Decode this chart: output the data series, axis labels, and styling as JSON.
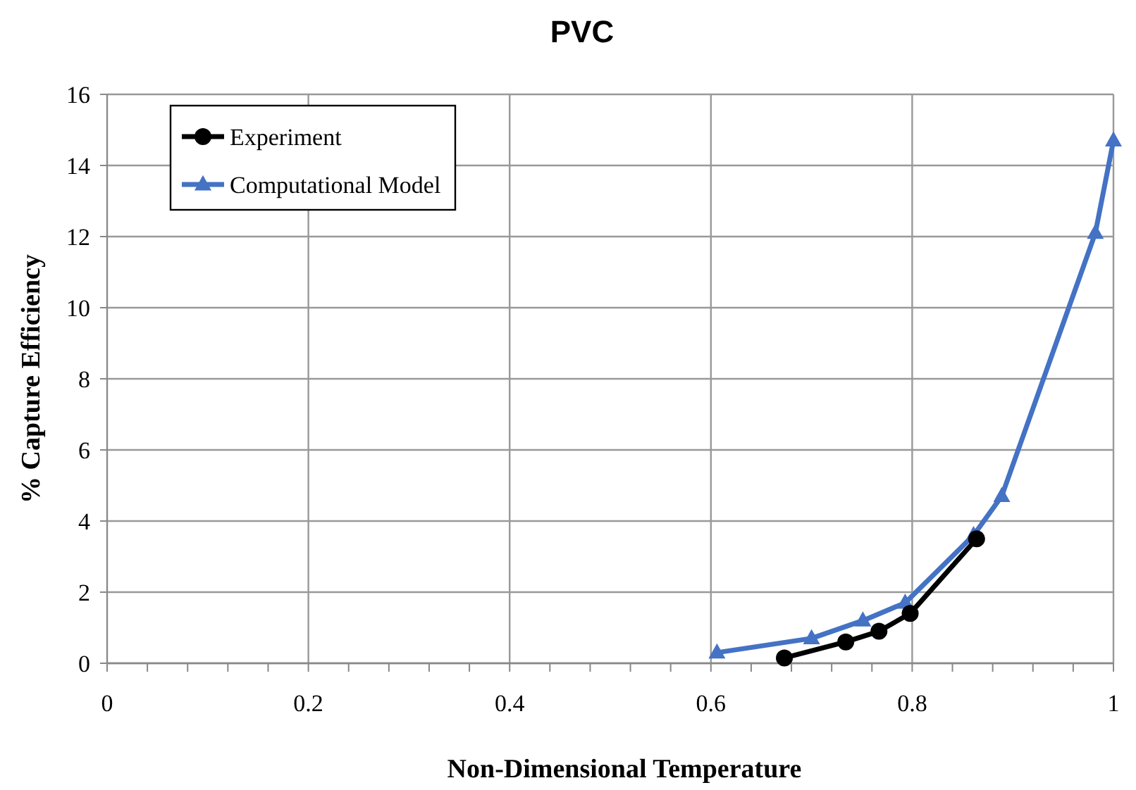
{
  "chart_data": {
    "type": "line",
    "title": "PVC",
    "xlabel": "Non-Dimensional Temperature",
    "ylabel": "% Capture Efficiency",
    "xlim": [
      0,
      1
    ],
    "xticks": [
      0,
      {
        "value": 0.04,
        "label": null
      },
      {
        "value": 0.08,
        "label": null
      },
      {
        "value": 0.12,
        "label": null
      },
      {
        "value": 0.16,
        "label": null
      },
      0.2,
      {
        "value": 0.24,
        "label": null
      },
      {
        "value": 0.28,
        "label": null
      },
      {
        "value": 0.32,
        "label": null
      },
      {
        "value": 0.36,
        "label": null
      },
      0.4,
      {
        "value": 0.44,
        "label": null
      },
      {
        "value": 0.48,
        "label": null
      },
      {
        "value": 0.52,
        "label": null
      },
      {
        "value": 0.56,
        "label": null
      },
      0.6,
      {
        "value": 0.64,
        "label": null
      },
      {
        "value": 0.68,
        "label": null
      },
      {
        "value": 0.72,
        "label": null
      },
      {
        "value": 0.76,
        "label": null
      },
      0.8,
      {
        "value": 0.84,
        "label": null
      },
      {
        "value": 0.88,
        "label": null
      },
      {
        "value": 0.92,
        "label": null
      },
      {
        "value": 0.96,
        "label": null
      },
      1
    ],
    "ylim": [
      0,
      16
    ],
    "yticks": [
      0,
      2,
      4,
      6,
      8,
      10,
      12,
      14,
      16
    ],
    "grid": true,
    "legend": "top left",
    "line_style": "solid",
    "series": [
      {
        "name": "Experiment",
        "color": "#000000",
        "marker": "circle",
        "x": [
          0.673,
          0.734,
          0.767,
          0.798,
          0.864
        ],
        "values": [
          0.15,
          0.6,
          0.9,
          1.4,
          3.5
        ]
      },
      {
        "name": "Computational Model",
        "color": "#4472c4",
        "marker": "triangle",
        "x": [
          0.606,
          0.7,
          0.751,
          0.793,
          0.861,
          0.889,
          0.982,
          1.0
        ],
        "values": [
          0.3,
          0.7,
          1.2,
          1.7,
          3.6,
          4.7,
          12.1,
          14.7
        ]
      }
    ]
  }
}
